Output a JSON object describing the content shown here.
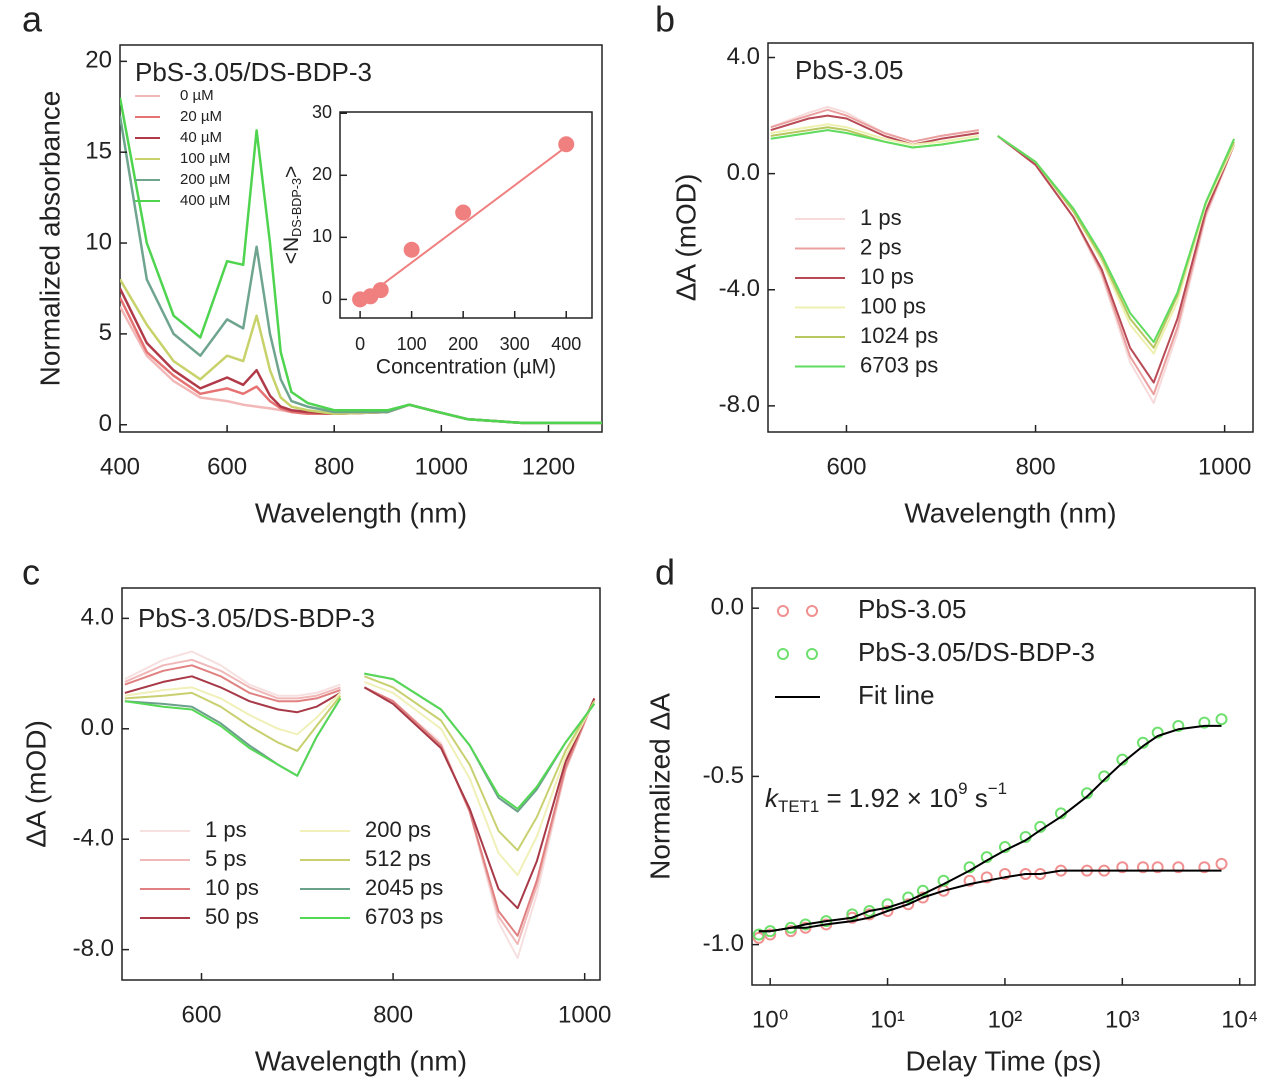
{
  "chart_data": [
    {
      "type": "line",
      "panel": "a",
      "title": "PbS-3.05/DS-BDP-3",
      "xlabel": "Wavelength (nm)",
      "ylabel": "Normalized absorbance",
      "xlim": [
        400,
        1300
      ],
      "xticks": [
        400,
        600,
        800,
        1000,
        1200
      ],
      "ylim": [
        -0.4,
        20.9
      ],
      "yticks": [
        0,
        5,
        10,
        15,
        20
      ],
      "x": [
        400,
        450,
        500,
        550,
        600,
        630,
        655,
        680,
        700,
        720,
        750,
        800,
        900,
        940,
        980,
        1050,
        1150,
        1300
      ],
      "series": [
        {
          "name": "0 µM",
          "color": "#f2b8b8",
          "values": [
            6.5,
            3.8,
            2.4,
            1.5,
            1.3,
            1.1,
            1,
            0.9,
            0.8,
            0.7,
            0.6,
            0.6,
            0.7,
            1.1,
            0.8,
            0.3,
            0.1,
            0.1
          ]
        },
        {
          "name": "20 µM",
          "color": "#e57373",
          "values": [
            7,
            4,
            2.7,
            1.7,
            2,
            1.7,
            2.1,
            1.3,
            0.9,
            0.7,
            0.6,
            0.6,
            0.7,
            1.1,
            0.8,
            0.3,
            0.1,
            0.1
          ]
        },
        {
          "name": "40 µM",
          "color": "#b03a48",
          "values": [
            7.5,
            4.5,
            3,
            2,
            2.6,
            2.2,
            3,
            1.6,
            1,
            0.8,
            0.7,
            0.6,
            0.7,
            1.1,
            0.8,
            0.3,
            0.1,
            0.1
          ]
        },
        {
          "name": "100 µM",
          "color": "#c8d26a",
          "values": [
            8,
            5.5,
            3.5,
            2.5,
            3.8,
            3.5,
            6,
            3,
            1.5,
            1,
            0.8,
            0.6,
            0.7,
            1.1,
            0.8,
            0.3,
            0.1,
            0.1
          ]
        },
        {
          "name": "200 µM",
          "color": "#6fa58f",
          "values": [
            17,
            8,
            5,
            3.8,
            5.8,
            5.3,
            9.8,
            5,
            2.5,
            1.3,
            1,
            0.7,
            0.7,
            1.1,
            0.8,
            0.3,
            0.1,
            0.1
          ]
        },
        {
          "name": "400 µM",
          "color": "#4fd44f",
          "values": [
            18,
            10,
            6,
            4.8,
            9,
            8.8,
            16.2,
            10,
            4,
            1.8,
            1.2,
            0.8,
            0.8,
            1.1,
            0.8,
            0.3,
            0.1,
            0.1
          ]
        }
      ]
    },
    {
      "type": "scatter",
      "xlabel": "Concentration (µM)",
      "ylabel_parts": [
        "<N",
        "DS-BDP-3",
        ">"
      ],
      "xlim": [
        -39,
        450
      ],
      "xticks": [
        0,
        100,
        200,
        300,
        400
      ],
      "ylim": [
        -3,
        30.2
      ],
      "yticks": [
        0,
        10,
        20,
        30
      ],
      "x": [
        0,
        20,
        40,
        100,
        200,
        400
      ],
      "series": [
        {
          "mode": "markers",
          "color": "#f08080",
          "values": [
            0,
            0.5,
            1.5,
            8,
            14,
            25
          ]
        },
        {
          "mode": "line",
          "color": "#f08080",
          "x": [
            0,
            400
          ],
          "values": [
            -0.3,
            24.6
          ]
        }
      ]
    },
    {
      "type": "line",
      "panel": "b",
      "title": "PbS-3.05",
      "xlabel": "Wavelength (nm)",
      "ylabel": "ΔA (mOD)",
      "xlim": [
        517,
        1030
      ],
      "xticks": [
        600,
        800,
        1000
      ],
      "ylim": [
        -8.9,
        4.5
      ],
      "yticks": [
        {
          "value": 4,
          "label": "4.0"
        },
        {
          "value": 0,
          "label": "0.0"
        },
        {
          "value": -4,
          "label": "-4.0"
        },
        {
          "value": -8,
          "label": "-8.0"
        }
      ],
      "x": [
        520,
        560,
        580,
        600,
        640,
        670,
        700,
        740,
        748,
        760,
        800,
        840,
        870,
        900,
        925,
        950,
        980,
        1010
      ],
      "series": [
        {
          "name": "1 ps",
          "color": "#f7dada",
          "values": [
            1.6,
            2.1,
            2.3,
            2.1,
            1.4,
            1.1,
            1.3,
            1.5,
            null,
            1.3,
            0.3,
            -1.5,
            -3.5,
            -6.5,
            -7.9,
            -5.5,
            -1.5,
            1.0
          ]
        },
        {
          "name": "2 ps",
          "color": "#eba0a0",
          "values": [
            1.6,
            2.0,
            2.2,
            2.0,
            1.4,
            1.1,
            1.3,
            1.5,
            null,
            1.3,
            0.3,
            -1.5,
            -3.4,
            -6.3,
            -7.6,
            -5.3,
            -1.4,
            1.0
          ]
        },
        {
          "name": "10 ps",
          "color": "#b84a55",
          "values": [
            1.5,
            1.9,
            2.0,
            1.9,
            1.3,
            1.0,
            1.2,
            1.4,
            null,
            1.3,
            0.3,
            -1.5,
            -3.3,
            -6.0,
            -7.2,
            -5.0,
            -1.3,
            1.0
          ]
        },
        {
          "name": "100 ps",
          "color": "#eef0b0",
          "values": [
            1.4,
            1.6,
            1.7,
            1.6,
            1.2,
            1.0,
            1.1,
            1.3,
            null,
            1.3,
            0.4,
            -1.3,
            -3.0,
            -5.2,
            -6.2,
            -4.4,
            -1.1,
            1.0
          ]
        },
        {
          "name": "1024 ps",
          "color": "#b8c860",
          "values": [
            1.3,
            1.5,
            1.6,
            1.5,
            1.1,
            0.9,
            1.0,
            1.2,
            null,
            1.3,
            0.4,
            -1.3,
            -2.9,
            -5.0,
            -6.0,
            -4.2,
            -1.0,
            1.1
          ]
        },
        {
          "name": "6703 ps",
          "color": "#5fdc5f",
          "values": [
            1.2,
            1.4,
            1.5,
            1.4,
            1.1,
            0.9,
            1.0,
            1.2,
            null,
            1.3,
            0.4,
            -1.2,
            -2.8,
            -4.8,
            -5.8,
            -4.1,
            -1.0,
            1.2
          ]
        }
      ]
    },
    {
      "type": "line",
      "panel": "c",
      "title": "PbS-3.05/DS-BDP-3",
      "xlabel": "Wavelength (nm)",
      "ylabel": "ΔA (mOD)",
      "xlim": [
        517,
        1016
      ],
      "xticks": [
        600,
        800,
        1000
      ],
      "ylim": [
        -9.1,
        5.1
      ],
      "yticks": [
        {
          "value": 4,
          "label": "4.0"
        },
        {
          "value": 0,
          "label": "0.0"
        },
        {
          "value": -4,
          "label": "-4.0"
        },
        {
          "value": -8,
          "label": "-8.0"
        }
      ],
      "x": [
        520,
        560,
        590,
        620,
        650,
        680,
        700,
        720,
        745,
        752,
        770,
        800,
        850,
        880,
        910,
        930,
        950,
        980,
        1010
      ],
      "series": [
        {
          "name": "1 ps",
          "color": "#f7e0e0",
          "values": [
            1.8,
            2.5,
            2.8,
            2.3,
            1.6,
            1.2,
            1.2,
            1.3,
            1.6,
            null,
            1.5,
            1.0,
            -0.5,
            -3,
            -7,
            -8.3,
            -6,
            -1.5,
            1.1
          ]
        },
        {
          "name": "5 ps",
          "color": "#f0b8b8",
          "values": [
            1.7,
            2.3,
            2.5,
            2.1,
            1.5,
            1.1,
            1.1,
            1.2,
            1.5,
            null,
            1.5,
            1.0,
            -0.6,
            -3,
            -6.8,
            -7.8,
            -5.7,
            -1.5,
            1.1
          ]
        },
        {
          "name": "10 ps",
          "color": "#e08080",
          "values": [
            1.6,
            2.1,
            2.3,
            1.9,
            1.3,
            1.0,
            1.0,
            1.1,
            1.4,
            null,
            1.5,
            1.0,
            -0.6,
            -3,
            -6.6,
            -7.5,
            -5.5,
            -1.4,
            1.1
          ]
        },
        {
          "name": "50 ps",
          "color": "#a83a48",
          "values": [
            1.3,
            1.7,
            1.9,
            1.5,
            1.0,
            0.7,
            0.6,
            0.8,
            1.3,
            null,
            1.5,
            0.9,
            -0.7,
            -2.9,
            -5.8,
            -6.5,
            -4.8,
            -1.2,
            1.1
          ]
        },
        {
          "name": "200 ps",
          "color": "#f0f0b8",
          "values": [
            1.2,
            1.4,
            1.5,
            1.1,
            0.5,
            0.0,
            -0.2,
            0.4,
            1.3,
            null,
            1.7,
            1.3,
            0.0,
            -1.8,
            -4.5,
            -5.3,
            -3.9,
            -1.0,
            1.0
          ]
        },
        {
          "name": "512 ps",
          "color": "#c8d070",
          "values": [
            1.1,
            1.2,
            1.3,
            0.8,
            0.1,
            -0.5,
            -0.8,
            0.1,
            1.2,
            null,
            1.9,
            1.5,
            0.3,
            -1.3,
            -3.7,
            -4.4,
            -3.2,
            -0.8,
            1.0
          ]
        },
        {
          "name": "2045 ps",
          "color": "#6ba08a",
          "values": [
            1.0,
            0.9,
            0.8,
            0.2,
            -0.6,
            -1.3,
            -1.7,
            -0.3,
            1.1,
            null,
            2.0,
            1.8,
            0.7,
            -0.6,
            -2.5,
            -3.0,
            -2.2,
            -0.5,
            0.9
          ]
        },
        {
          "name": "6703 ps",
          "color": "#55d855",
          "values": [
            1.0,
            0.8,
            0.7,
            0.1,
            -0.7,
            -1.3,
            -1.7,
            -0.3,
            1.1,
            null,
            2.0,
            1.8,
            0.7,
            -0.6,
            -2.4,
            -2.9,
            -2.1,
            -0.5,
            0.9
          ]
        }
      ]
    },
    {
      "type": "scatter",
      "panel": "d",
      "xlabel": "Delay Time (ps)",
      "ylabel": "Normalized ΔA",
      "xscale": "log",
      "annotation": [
        "k",
        "TET1",
        " = 1.92 × 10",
        "9",
        " s",
        "−1"
      ],
      "xlim": [
        0.7,
        13500
      ],
      "xticks": [
        {
          "value": 1,
          "label": "10⁰"
        },
        {
          "value": 10,
          "label": "10¹"
        },
        {
          "value": 100,
          "label": "10²"
        },
        {
          "value": 1000,
          "label": "10³"
        },
        {
          "value": 10000,
          "label": "10⁴"
        }
      ],
      "ylim": [
        -1.12,
        0.06
      ],
      "yticks": [
        {
          "value": 0,
          "label": "0.0"
        },
        -0.5,
        {
          "value": -1,
          "label": "-1.0"
        }
      ],
      "x": [
        0.8,
        1,
        1.5,
        2,
        3,
        5,
        7,
        10,
        15,
        20,
        30,
        50,
        70,
        100,
        150,
        200,
        300,
        500,
        700,
        1000,
        1500,
        2000,
        3000,
        5000,
        7000
      ],
      "series": [
        {
          "name": "PbS-3.05",
          "mode": "markers",
          "color": "#f09090",
          "values": [
            -0.98,
            -0.97,
            -0.96,
            -0.95,
            -0.94,
            -0.92,
            -0.91,
            -0.9,
            -0.88,
            -0.86,
            -0.84,
            -0.81,
            -0.8,
            -0.79,
            -0.79,
            -0.79,
            -0.78,
            -0.78,
            -0.78,
            -0.77,
            -0.77,
            -0.77,
            -0.77,
            -0.77,
            -0.76
          ]
        },
        {
          "name": "PbS-3.05/DS-BDP-3",
          "mode": "markers",
          "color": "#6ee06e",
          "values": [
            -0.97,
            -0.96,
            -0.95,
            -0.94,
            -0.93,
            -0.91,
            -0.9,
            -0.88,
            -0.86,
            -0.84,
            -0.81,
            -0.77,
            -0.74,
            -0.71,
            -0.68,
            -0.65,
            -0.61,
            -0.55,
            -0.5,
            -0.45,
            -0.4,
            -0.37,
            -0.35,
            -0.34,
            -0.33
          ]
        },
        {
          "name": "Fit line",
          "mode": "line",
          "color": "#000000",
          "values": [
            -0.96,
            -0.96,
            -0.95,
            -0.94,
            -0.93,
            -0.92,
            -0.9,
            -0.89,
            -0.87,
            -0.85,
            -0.82,
            -0.78,
            -0.75,
            -0.72,
            -0.69,
            -0.66,
            -0.62,
            -0.56,
            -0.51,
            -0.46,
            -0.41,
            -0.38,
            -0.36,
            -0.35,
            -0.35
          ]
        },
        {
          "mode": "line",
          "color": "#000000",
          "values": [
            -0.96,
            -0.96,
            -0.95,
            -0.95,
            -0.94,
            -0.93,
            -0.92,
            -0.9,
            -0.88,
            -0.86,
            -0.84,
            -0.82,
            -0.81,
            -0.8,
            -0.79,
            -0.79,
            -0.78,
            -0.78,
            -0.78,
            -0.78,
            -0.78,
            -0.78,
            -0.78,
            -0.78,
            -0.78
          ]
        }
      ]
    }
  ]
}
